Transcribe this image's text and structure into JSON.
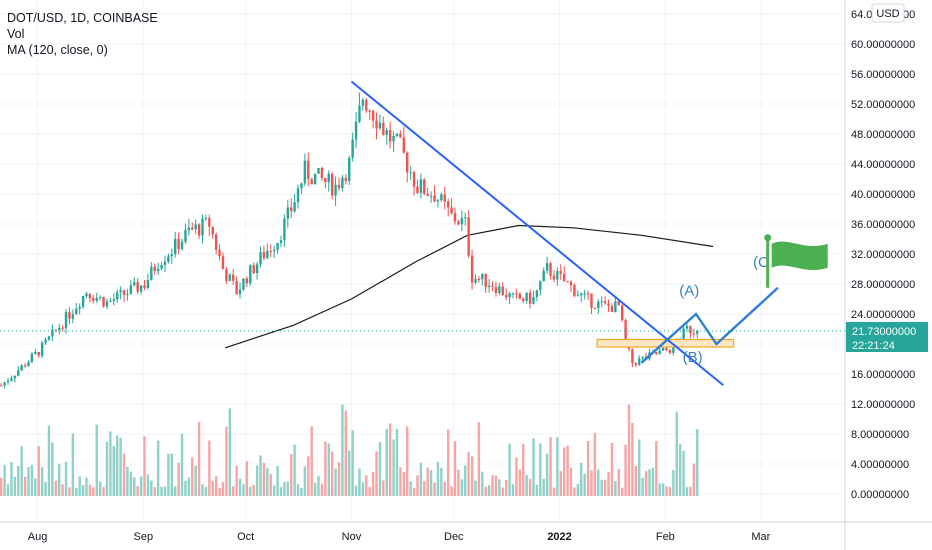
{
  "header": {
    "title": "DOT/USD, 1D, COINBASE",
    "indicator_vol": "Vol",
    "indicator_ma": "MA (120, close, 0)"
  },
  "currency_badge": "USD",
  "price_label": {
    "price": "21.73000000",
    "countdown": "22:21:24"
  },
  "colors": {
    "up": "#26a69a",
    "down": "#ef5350",
    "vol_up": "#8fd0c7",
    "vol_down": "#f6a5a4",
    "trendline": "#2962ff",
    "wave": "#2f7fd4",
    "ma": "#1a1a1a",
    "zone_fill": "#fde6c4",
    "zone_stroke": "#f5a623",
    "flag": "#4caf50",
    "last_price_tag": "#26a69a"
  },
  "chart_data": {
    "type": "candlestick",
    "title": "DOT/USD, 1D, COINBASE",
    "x_ticks": [
      "Aug",
      "Sep",
      "Oct",
      "Nov",
      "Dec",
      "2022",
      "Feb",
      "Mar"
    ],
    "y_ticks": [
      "64.00000000",
      "60.00000000",
      "56.00000000",
      "52.00000000",
      "48.00000000",
      "44.00000000",
      "40.00000000",
      "36.00000000",
      "32.00000000",
      "28.00000000",
      "24.00000000",
      "20.00000000",
      "16.00000000",
      "12.00000000",
      "8.00000000",
      "4.00000000",
      "0.00000000"
    ],
    "ylim": [
      0,
      64
    ],
    "last_price": 21.73,
    "price_anchors": [
      {
        "date": "2021-07-21",
        "price": 14.5
      },
      {
        "date": "2021-08-01",
        "price": 19
      },
      {
        "date": "2021-08-10",
        "price": 24
      },
      {
        "date": "2021-08-15",
        "price": 27
      },
      {
        "date": "2021-08-21",
        "price": 25.5
      },
      {
        "date": "2021-09-01",
        "price": 28
      },
      {
        "date": "2021-09-05",
        "price": 31
      },
      {
        "date": "2021-09-10",
        "price": 33
      },
      {
        "date": "2021-09-14",
        "price": 35
      },
      {
        "date": "2021-09-20",
        "price": 36
      },
      {
        "date": "2021-09-24",
        "price": 30
      },
      {
        "date": "2021-09-28",
        "price": 27
      },
      {
        "date": "2021-10-01",
        "price": 29
      },
      {
        "date": "2021-10-06",
        "price": 32
      },
      {
        "date": "2021-10-10",
        "price": 34
      },
      {
        "date": "2021-10-14",
        "price": 38
      },
      {
        "date": "2021-10-18",
        "price": 43
      },
      {
        "date": "2021-10-22",
        "price": 42
      },
      {
        "date": "2021-10-27",
        "price": 41
      },
      {
        "date": "2021-10-31",
        "price": 44
      },
      {
        "date": "2021-11-04",
        "price": 53
      },
      {
        "date": "2021-11-07",
        "price": 51
      },
      {
        "date": "2021-11-11",
        "price": 48
      },
      {
        "date": "2021-11-15",
        "price": 46
      },
      {
        "date": "2021-11-20",
        "price": 41
      },
      {
        "date": "2021-11-25",
        "price": 40
      },
      {
        "date": "2021-11-30",
        "price": 37
      },
      {
        "date": "2021-12-04",
        "price": 36
      },
      {
        "date": "2021-12-06",
        "price": 29
      },
      {
        "date": "2021-12-12",
        "price": 28
      },
      {
        "date": "2021-12-18",
        "price": 26
      },
      {
        "date": "2021-12-24",
        "price": 26
      },
      {
        "date": "2021-12-28",
        "price": 30
      },
      {
        "date": "2022-01-03",
        "price": 28
      },
      {
        "date": "2022-01-08",
        "price": 26
      },
      {
        "date": "2022-01-14",
        "price": 25
      },
      {
        "date": "2022-01-18",
        "price": 25
      },
      {
        "date": "2022-01-20",
        "price": 20
      },
      {
        "date": "2022-01-22",
        "price": 17.5
      },
      {
        "date": "2022-01-28",
        "price": 18.5
      },
      {
        "date": "2022-02-03",
        "price": 19.5
      },
      {
        "date": "2022-02-07",
        "price": 22
      },
      {
        "date": "2022-02-10",
        "price": 21.73
      }
    ],
    "ma_anchors": [
      {
        "date": "2021-09-25",
        "ma": 19.5
      },
      {
        "date": "2021-10-15",
        "ma": 22.5
      },
      {
        "date": "2021-11-01",
        "ma": 26
      },
      {
        "date": "2021-11-20",
        "ma": 31
      },
      {
        "date": "2021-12-05",
        "ma": 34.5
      },
      {
        "date": "2021-12-20",
        "ma": 35.8
      },
      {
        "date": "2022-01-05",
        "ma": 35.5
      },
      {
        "date": "2022-01-25",
        "ma": 34.5
      },
      {
        "date": "2022-02-15",
        "ma": 33
      }
    ],
    "trendline": [
      {
        "date": "2021-11-01",
        "price": 55
      },
      {
        "date": "2022-02-18",
        "price": 14.5
      }
    ],
    "support_zone": {
      "from": "2022-01-12",
      "to": "2022-02-21",
      "low": 19.6,
      "high": 20.6
    },
    "projected_wave": [
      {
        "date": "2022-01-25",
        "price": 17.5
      },
      {
        "date": "2022-02-10",
        "price": 24
      },
      {
        "date": "2022-02-16",
        "price": 20
      },
      {
        "date": "2022-03-06",
        "price": 27.5
      }
    ],
    "wave_labels": [
      {
        "text": "(A)",
        "date": "2022-02-08",
        "price": 26.5
      },
      {
        "text": "(B)",
        "date": "2022-02-09",
        "price": 17.6
      },
      {
        "text": "(C",
        "date": "2022-02-29",
        "price": 30.3
      }
    ],
    "flag_at": {
      "date": "2022-03-03",
      "price": 27.5
    },
    "volume": "approximate daily volume bars, shown on lower pane"
  }
}
